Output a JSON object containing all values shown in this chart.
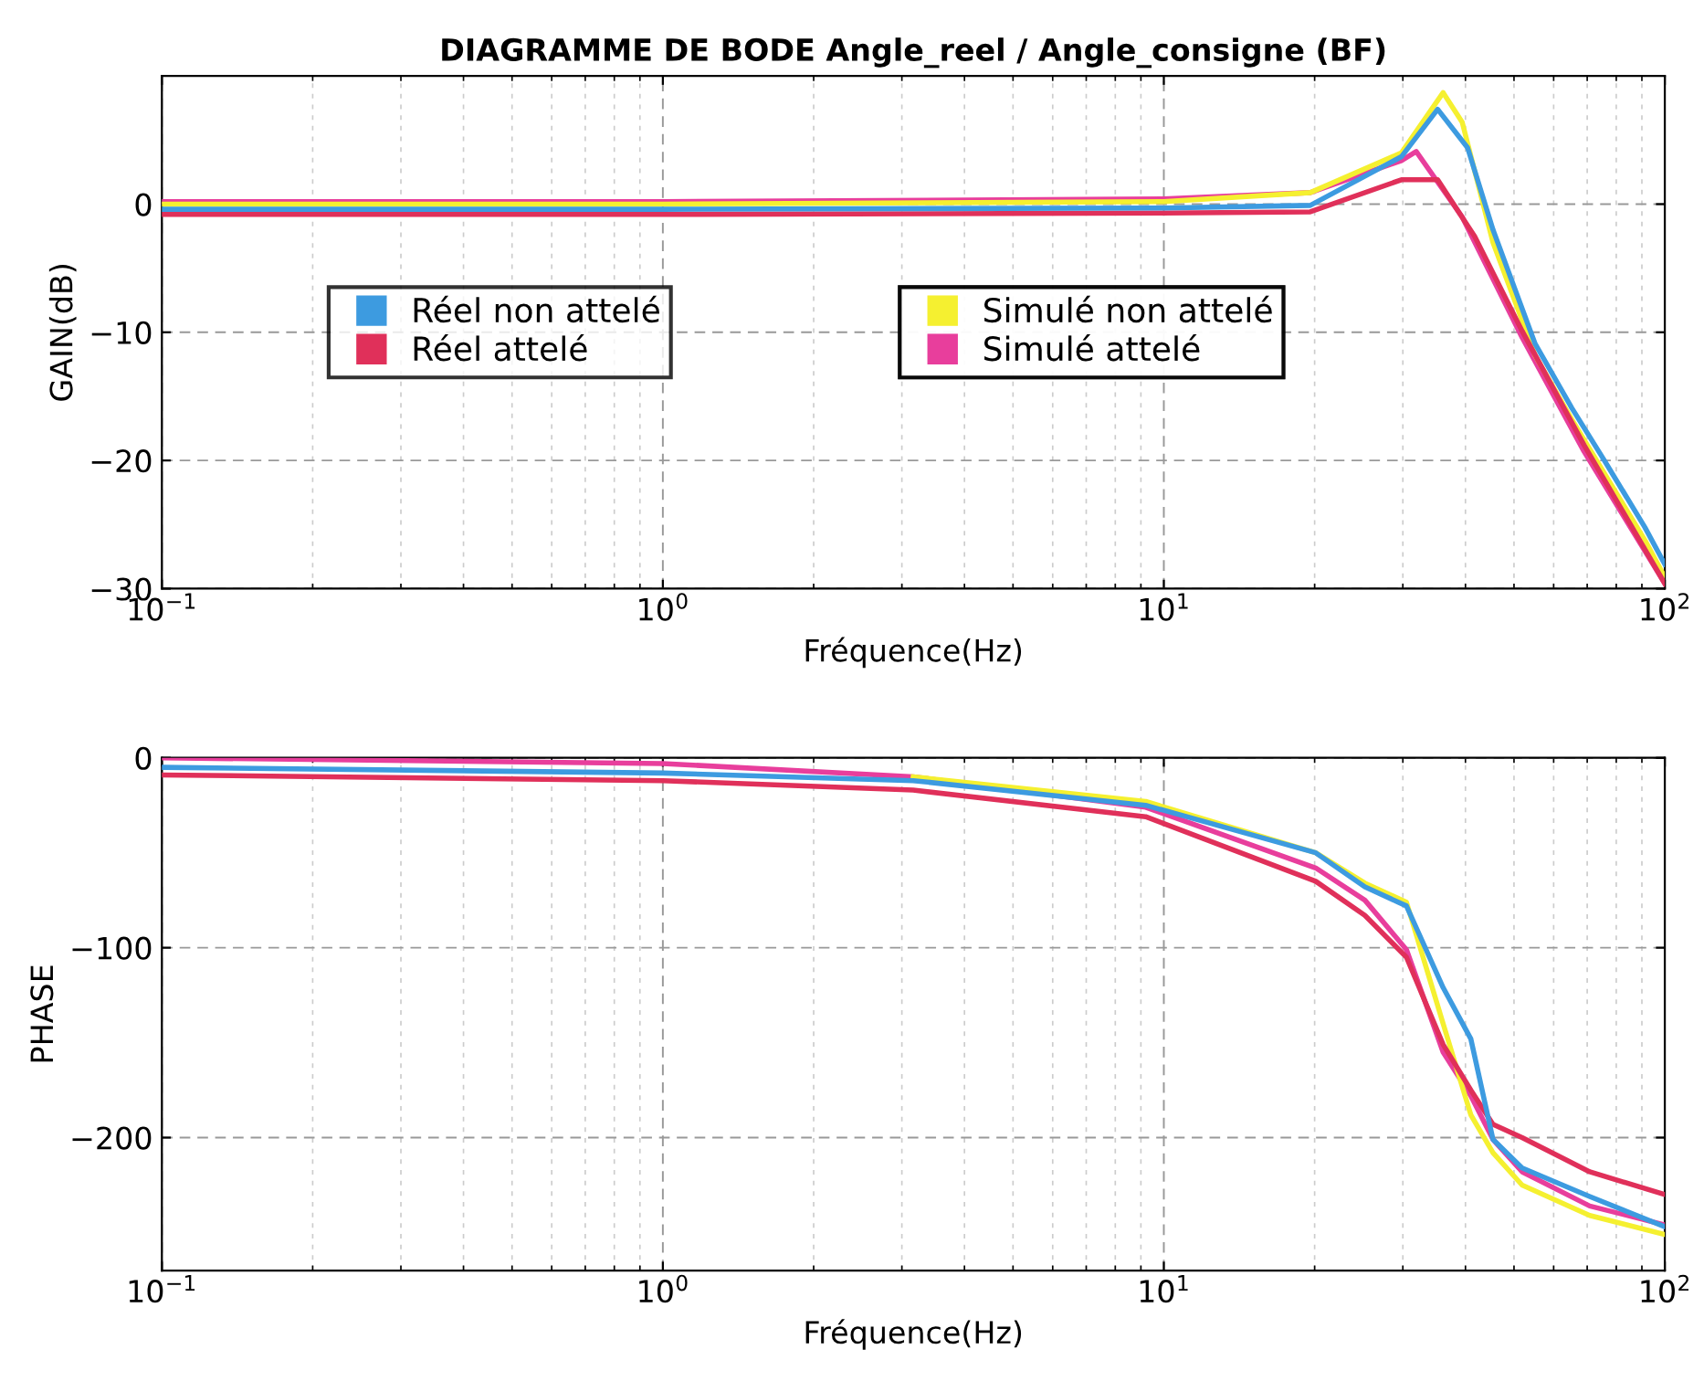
{
  "chart_data": [
    {
      "type": "line",
      "title": "DIAGRAMME DE BODE Angle_reel / Angle_consigne (BF)",
      "xlabel": "Fréquence(Hz)",
      "ylabel": "GAIN(dB)",
      "log": "x",
      "grid": true,
      "legend": "center",
      "line_style": "solid",
      "marker": "none",
      "xlim": [
        0.1,
        100
      ],
      "xticks": [
        {
          "value": 0.1,
          "label": "10$^{−1}$"
        },
        {
          "value": 1,
          "label": "10$^{0}$"
        },
        {
          "value": 10,
          "label": "10$^{1}$"
        },
        {
          "value": 100,
          "label": "10$^{2}$"
        }
      ],
      "ylim": [
        -30,
        10
      ],
      "yticks": [
        -30,
        -20,
        -10,
        0
      ],
      "series": [
        {
          "name": "Réel non attelé",
          "color": "#3d9be0",
          "x": [
            0.1,
            1,
            10,
            19.6,
            29.8,
            35.2,
            40.4,
            45.4,
            55.1,
            65.2,
            75.2,
            91.2,
            100
          ],
          "values": [
            -0.4,
            -0.4,
            -0.3,
            -0.1,
            3.7,
            7.4,
            4.4,
            -2.0,
            -10.9,
            -15.9,
            -19.8,
            -25.2,
            -28.1
          ]
        },
        {
          "name": "Réel attelé",
          "color": "#e0305a",
          "x": [
            0.1,
            1,
            10,
            19.6,
            29.8,
            35.2,
            41.7,
            51.9,
            69,
            100
          ],
          "values": [
            -0.8,
            -0.8,
            -0.7,
            -0.6,
            1.9,
            1.9,
            -2.5,
            -9.9,
            -18.8,
            -29.6
          ]
        },
        {
          "name": "Simulé non attelé",
          "color": "#f5f030",
          "x": [
            0.1,
            1,
            10,
            19.6,
            29.8,
            36.1,
            39.4,
            45.4,
            55.1,
            65.2,
            75.2,
            91.2,
            100
          ],
          "values": [
            0,
            0,
            0.2,
            0.9,
            4.0,
            8.7,
            6.4,
            -3.0,
            -11.8,
            -16.8,
            -20.8,
            -26.2,
            -29.1
          ]
        },
        {
          "name": "Simulé attelé",
          "color": "#e83e9c",
          "x": [
            0.1,
            1,
            10,
            19.6,
            29.8,
            31.9,
            39.4,
            51.9,
            69,
            100
          ],
          "values": [
            0.2,
            0.2,
            0.4,
            0.9,
            3.4,
            4.1,
            -1.0,
            -10.4,
            -19.3,
            -29.6
          ]
        }
      ]
    },
    {
      "type": "line",
      "xlabel": "Fréquence(Hz)",
      "ylabel": "PHASE",
      "log": "x",
      "grid": true,
      "line_style": "solid",
      "marker": "none",
      "xlim": [
        0.1,
        100
      ],
      "xticks": [
        {
          "value": 0.1,
          "label": "10$^{−1}$"
        },
        {
          "value": 1,
          "label": "10$^{0}$"
        },
        {
          "value": 10,
          "label": "10$^{1}$"
        },
        {
          "value": 100,
          "label": "10$^{2}$"
        }
      ],
      "ylim": [
        -270,
        0
      ],
      "yticks": [
        -200,
        -100,
        0
      ],
      "series": [
        {
          "color": "#3d9be0",
          "x": [
            0.1,
            1,
            3.16,
            9.2,
            20.1,
            25.2,
            30.5,
            36.1,
            41,
            45.4,
            51.9,
            70.8,
            100
          ],
          "values": [
            -5,
            -8,
            -12,
            -25,
            -50,
            -68,
            -78,
            -121,
            -148,
            -201,
            -216,
            -231,
            -247
          ]
        },
        {
          "color": "#e0305a",
          "x": [
            0.1,
            1,
            3.16,
            9.2,
            20.1,
            25.2,
            30.5,
            36.1,
            41,
            45.4,
            51.9,
            70.8,
            100
          ],
          "values": [
            -9,
            -12,
            -17,
            -31,
            -65,
            -83,
            -105,
            -151,
            -175,
            -193,
            -200,
            -218,
            -230
          ]
        },
        {
          "color": "#f5f030",
          "x": [
            3.16,
            9.2,
            20.1,
            25.2,
            30.5,
            36.1,
            41,
            45.4,
            51.9,
            70.8,
            100
          ],
          "values": [
            -10,
            -23,
            -50,
            -66,
            -76,
            -140,
            -188,
            -208,
            -225,
            -241,
            -251
          ]
        },
        {
          "color": "#e83e9c",
          "x": [
            0.1,
            1,
            3.16,
            9.2,
            20.1,
            25.2,
            30.5,
            36.1,
            41,
            45.4,
            51.9,
            70.8,
            100
          ],
          "values": [
            0,
            -3,
            -10,
            -26,
            -58,
            -75,
            -101,
            -155,
            -178,
            -201,
            -218,
            -236,
            -246
          ]
        }
      ]
    }
  ]
}
